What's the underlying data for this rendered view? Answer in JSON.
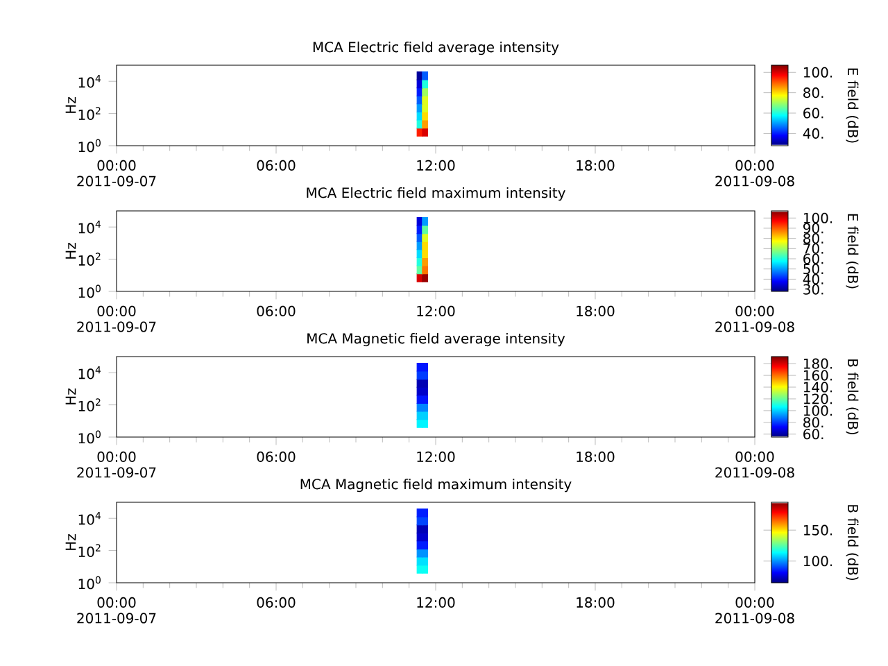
{
  "chart_data": [
    {
      "type": "heatmap",
      "title": "MCA  Electric field average intensity",
      "ylabel": "Hz",
      "clabel": "E field (dB)",
      "log": "y",
      "x": [
        "2011-09-07T11:24",
        "2011-09-07T11:36"
      ],
      "y": [
        7,
        22,
        70,
        220,
        700,
        2200,
        7000,
        22000
      ],
      "cells": [
        [
          95,
          100
        ],
        [
          60,
          85
        ],
        [
          55,
          80
        ],
        [
          50,
          75
        ],
        [
          45,
          75
        ],
        [
          40,
          70
        ],
        [
          35,
          60
        ],
        [
          30,
          45
        ]
      ],
      "xlim": [
        "2011-09-07T00:00",
        "2011-09-08T00:00"
      ],
      "xticks": [
        {
          "value": "2011-09-07T00:00",
          "label": "00:00 2011-09-07"
        },
        {
          "value": "2011-09-07T06:00",
          "label": "06:00"
        },
        {
          "value": "2011-09-07T12:00",
          "label": "12:00"
        },
        {
          "value": "2011-09-07T18:00",
          "label": "18:00"
        },
        {
          "value": "2011-09-08T00:00",
          "label": "00:00 2011-09-08"
        }
      ],
      "ylim": [
        1,
        100000
      ],
      "yticks": [
        {
          "value": 1,
          "label": "10$^{0}$"
        },
        {
          "value": 100,
          "label": "10$^{2}$"
        },
        {
          "value": 10000,
          "label": "10$^{4}$"
        }
      ],
      "clim": [
        28,
        107
      ],
      "cticks": [
        {
          "value": 40,
          "label": "40."
        },
        {
          "value": 60,
          "label": "60."
        },
        {
          "value": 80,
          "label": "80."
        },
        {
          "value": 100,
          "label": "100."
        }
      ]
    },
    {
      "type": "heatmap",
      "title": "MCA  Electric field maximum intensity",
      "ylabel": "Hz",
      "clabel": "E field (dB)",
      "log": "y",
      "x": [
        "2011-09-07T11:24",
        "2011-09-07T11:36"
      ],
      "y": [
        7,
        22,
        70,
        220,
        700,
        2200,
        7000,
        22000
      ],
      "cells": [
        [
          100,
          105
        ],
        [
          65,
          88
        ],
        [
          60,
          85
        ],
        [
          55,
          80
        ],
        [
          50,
          80
        ],
        [
          45,
          75
        ],
        [
          40,
          65
        ],
        [
          35,
          50
        ]
      ],
      "xlim": [
        "2011-09-07T00:00",
        "2011-09-08T00:00"
      ],
      "xticks": [
        {
          "value": "2011-09-07T00:00",
          "label": "00:00 2011-09-07"
        },
        {
          "value": "2011-09-07T06:00",
          "label": "06:00"
        },
        {
          "value": "2011-09-07T12:00",
          "label": "12:00"
        },
        {
          "value": "2011-09-07T18:00",
          "label": "18:00"
        },
        {
          "value": "2011-09-08T00:00",
          "label": "00:00 2011-09-08"
        }
      ],
      "ylim": [
        1,
        100000
      ],
      "yticks": [
        {
          "value": 1,
          "label": "10$^{0}$"
        },
        {
          "value": 100,
          "label": "10$^{2}$"
        },
        {
          "value": 10000,
          "label": "10$^{4}$"
        }
      ],
      "clim": [
        28,
        107
      ],
      "cticks": [
        {
          "value": 30,
          "label": "30."
        },
        {
          "value": 40,
          "label": "40."
        },
        {
          "value": 50,
          "label": "50."
        },
        {
          "value": 60,
          "label": "60."
        },
        {
          "value": 70,
          "label": "70."
        },
        {
          "value": 80,
          "label": "80."
        },
        {
          "value": 90,
          "label": "90."
        },
        {
          "value": 100,
          "label": "100."
        }
      ]
    },
    {
      "type": "heatmap",
      "title": "MCA  Magnetic field average intensity",
      "ylabel": "Hz",
      "clabel": "B field (dB)",
      "log": "y",
      "x": [
        "2011-09-07T11:24",
        "2011-09-07T11:36"
      ],
      "y": [
        7,
        22,
        70,
        220,
        700,
        2200,
        7000,
        22000
      ],
      "cells": [
        [
          105,
          105
        ],
        [
          100,
          100
        ],
        [
          90,
          90
        ],
        [
          75,
          75
        ],
        [
          65,
          65
        ],
        [
          62,
          62
        ],
        [
          80,
          80
        ],
        [
          75,
          75
        ]
      ],
      "xlim": [
        "2011-09-07T00:00",
        "2011-09-08T00:00"
      ],
      "xticks": [
        {
          "value": "2011-09-07T00:00",
          "label": "00:00 2011-09-07"
        },
        {
          "value": "2011-09-07T06:00",
          "label": "06:00"
        },
        {
          "value": "2011-09-07T12:00",
          "label": "12:00"
        },
        {
          "value": "2011-09-07T18:00",
          "label": "18:00"
        },
        {
          "value": "2011-09-08T00:00",
          "label": "00:00 2011-09-08"
        }
      ],
      "ylim": [
        1,
        100000
      ],
      "yticks": [
        {
          "value": 1,
          "label": "10$^{0}$"
        },
        {
          "value": 100,
          "label": "10$^{2}$"
        },
        {
          "value": 10000,
          "label": "10$^{4}$"
        }
      ],
      "clim": [
        55,
        192
      ],
      "cticks": [
        {
          "value": 60,
          "label": "60."
        },
        {
          "value": 80,
          "label": "80."
        },
        {
          "value": 100,
          "label": "100."
        },
        {
          "value": 120,
          "label": "120."
        },
        {
          "value": 140,
          "label": "140."
        },
        {
          "value": 160,
          "label": "160."
        },
        {
          "value": 180,
          "label": "180."
        }
      ]
    },
    {
      "type": "heatmap",
      "title": "MCA  Magnetic field maximum intensity",
      "ylabel": "Hz",
      "clabel": "B field (dB)",
      "log": "y",
      "x": [
        "2011-09-07T11:24",
        "2011-09-07T11:36"
      ],
      "y": [
        7,
        22,
        70,
        220,
        700,
        2200,
        7000,
        22000
      ],
      "cells": [
        [
          115,
          115
        ],
        [
          110,
          110
        ],
        [
          100,
          100
        ],
        [
          85,
          85
        ],
        [
          75,
          75
        ],
        [
          72,
          72
        ],
        [
          90,
          90
        ],
        [
          85,
          85
        ]
      ],
      "xlim": [
        "2011-09-07T00:00",
        "2011-09-08T00:00"
      ],
      "xticks": [
        {
          "value": "2011-09-07T00:00",
          "label": "00:00 2011-09-07"
        },
        {
          "value": "2011-09-07T06:00",
          "label": "06:00"
        },
        {
          "value": "2011-09-07T12:00",
          "label": "12:00"
        },
        {
          "value": "2011-09-07T18:00",
          "label": "18:00"
        },
        {
          "value": "2011-09-08T00:00",
          "label": "00:00 2011-09-08"
        }
      ],
      "ylim": [
        1,
        100000
      ],
      "yticks": [
        {
          "value": 1,
          "label": "10$^{0}$"
        },
        {
          "value": 100,
          "label": "10$^{2}$"
        },
        {
          "value": 10000,
          "label": "10$^{4}$"
        }
      ],
      "clim": [
        65,
        195
      ],
      "cticks": [
        {
          "value": 100,
          "label": "100."
        },
        {
          "value": 150,
          "label": "150."
        }
      ]
    }
  ]
}
